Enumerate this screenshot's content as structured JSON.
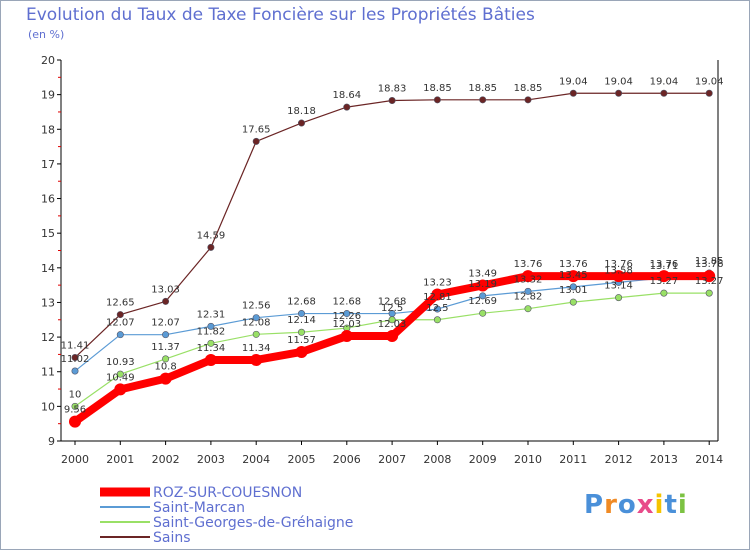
{
  "header": {
    "title": "Evolution du Taux de Taxe Foncière sur les Propriétés Bâties",
    "subtitle": "(en %)"
  },
  "logo": {
    "text": "Proxiti"
  },
  "chart_data": {
    "type": "line",
    "title": "Evolution du Taux de Taxe Foncière sur les Propriétés Bâties",
    "ylabel": "(en %)",
    "xlabel": "",
    "x": [
      2000,
      2001,
      2002,
      2003,
      2004,
      2005,
      2006,
      2007,
      2008,
      2009,
      2010,
      2011,
      2012,
      2013,
      2014
    ],
    "ylim": [
      9,
      20
    ],
    "yticks": [
      9,
      10,
      11,
      12,
      13,
      14,
      15,
      16,
      17,
      18,
      19,
      20
    ],
    "grid": false,
    "legend_position": "bottom-left",
    "series": [
      {
        "name": "ROZ-SUR-COUESNON",
        "color": "#ff0000",
        "values": [
          9.56,
          10.49,
          10.8,
          11.34,
          11.34,
          11.57,
          12.03,
          12.03,
          13.23,
          13.49,
          13.76,
          13.76,
          13.76,
          13.76,
          13.76
        ],
        "labels": [
          "9.56",
          "10.49",
          "10.8",
          "11.34",
          "11.34",
          "11.57",
          "12.03",
          "12.03",
          "13.23",
          "13.49",
          "13.76",
          "13.76",
          "13.76",
          "13.76",
          "13.76"
        ]
      },
      {
        "name": "Saint-Marcan",
        "color": "#5b9bd5",
        "values": [
          11.02,
          12.07,
          12.07,
          12.31,
          12.56,
          12.68,
          12.68,
          12.68,
          12.81,
          13.19,
          13.32,
          13.45,
          13.58,
          13.71,
          13.85
        ],
        "labels": [
          "11.02",
          "12.07",
          "12.07",
          "12.31",
          "12.56",
          "12.68",
          "12.68",
          "12.68",
          "12.81",
          "13.19",
          "13.32",
          "13.45",
          "13.58",
          "13.71",
          "13.85"
        ]
      },
      {
        "name": "Saint-Georges-de-Gréhaigne",
        "color": "#99e066",
        "values": [
          10.0,
          10.93,
          11.37,
          11.82,
          12.08,
          12.14,
          12.26,
          12.5,
          12.5,
          12.69,
          12.82,
          13.01,
          13.14,
          13.27,
          13.27
        ],
        "labels": [
          "10",
          "10.93",
          "11.37",
          "11.82",
          "12.08",
          "12.14",
          "12.26",
          "12.5",
          "12.5",
          "12.69",
          "12.82",
          "13.01",
          "13.14",
          "13.27",
          "13.27"
        ]
      },
      {
        "name": "Sains",
        "color": "#6b2525",
        "values": [
          11.41,
          12.65,
          13.03,
          14.59,
          17.65,
          18.18,
          18.64,
          18.83,
          18.85,
          18.85,
          18.85,
          19.04,
          19.04,
          19.04,
          19.04
        ],
        "labels": [
          "11.41",
          "12.65",
          "13.03",
          "14.59",
          "17.65",
          "18.18",
          "18.64",
          "18.83",
          "18.85",
          "18.85",
          "18.85",
          "19.04",
          "19.04",
          "19.04",
          "19.04"
        ]
      }
    ]
  }
}
